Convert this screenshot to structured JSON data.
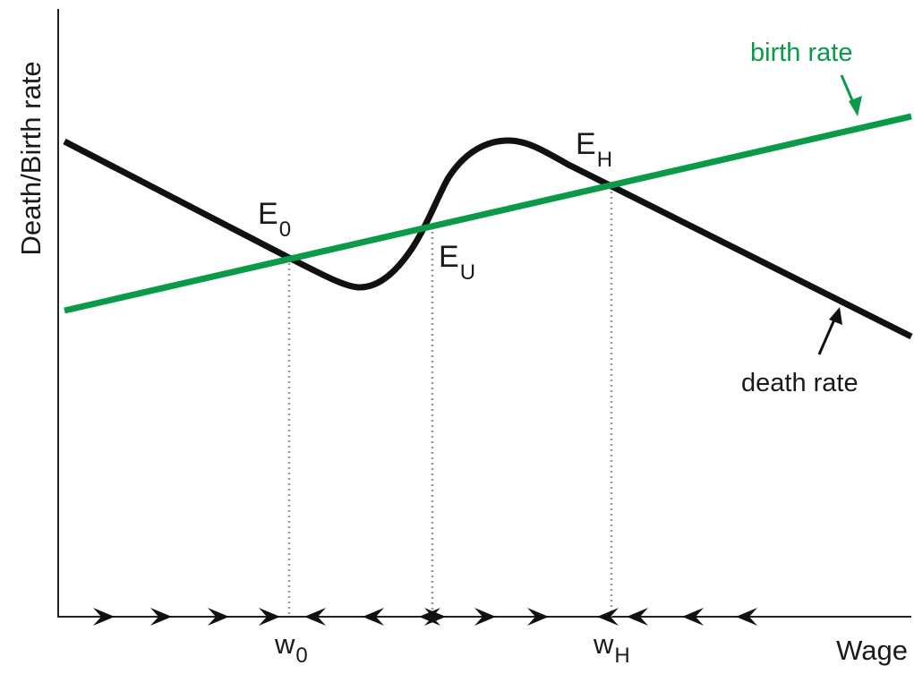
{
  "diagram": {
    "title": "",
    "y_axis_label": "Death/Birth rate",
    "x_axis_label": "Wage",
    "curves": {
      "birth": {
        "label": "birth rate",
        "color": "#0a9a48"
      },
      "death": {
        "label": "death rate",
        "color": "#111111"
      }
    },
    "equilibria": [
      {
        "id": "E0",
        "letter": "E",
        "subscript": "0",
        "wage_letter": "w",
        "wage_subscript": "0",
        "stability": "stable"
      },
      {
        "id": "EU",
        "letter": "E",
        "subscript": "U",
        "wage_letter": "",
        "wage_subscript": "",
        "stability": "unstable"
      },
      {
        "id": "EH",
        "letter": "E",
        "subscript": "H",
        "wage_letter": "w",
        "wage_subscript": "H",
        "stability": "stable"
      }
    ],
    "flow_arrows_direction": [
      "right",
      "right",
      "right",
      "right",
      "left",
      "left",
      "left",
      "right",
      "right",
      "right",
      "left",
      "left",
      "left",
      "left"
    ],
    "colors": {
      "axis": "#222222",
      "guide": "#9a9a9a",
      "arrow": "#111111"
    }
  }
}
